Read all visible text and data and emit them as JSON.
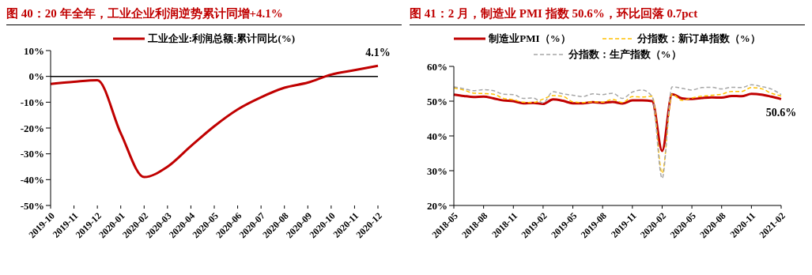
{
  "chart_data": [
    {
      "type": "line",
      "title": "图 40：20 年全年，工业企业利润逆势累计同增+4.1%",
      "categories": [
        "2019-10",
        "2019-11",
        "2019-12",
        "2020-01",
        "2020-02",
        "2020-03",
        "2020-04",
        "2020-05",
        "2020-06",
        "2020-07",
        "2020-08",
        "2020-09",
        "2020-10",
        "2020-11",
        "2020-12"
      ],
      "series": [
        {
          "name": "工业企业:利润总额:累计同比(%)",
          "color": "#c00000",
          "line_style": "solid",
          "values": [
            -2.9,
            -2.1,
            -1.5,
            -22,
            -39,
            -35,
            -27,
            -19.3,
            -12.8,
            -8.1,
            -4.4,
            -2.4,
            0.7,
            2.4,
            4.1
          ]
        }
      ],
      "ylim": [
        -50,
        10
      ],
      "yticks": [
        {
          "value": -50,
          "label": "-50%"
        },
        {
          "value": -40,
          "label": "-40%"
        },
        {
          "value": -30,
          "label": "-30%"
        },
        {
          "value": -20,
          "label": "-20%"
        },
        {
          "value": -10,
          "label": "-10%"
        },
        {
          "value": 0,
          "label": "0%"
        },
        {
          "value": 10,
          "label": "10%"
        }
      ],
      "ref_lines": [
        {
          "axis": "y",
          "value": 0,
          "label": null,
          "color": "#000000"
        }
      ],
      "annotations": [
        {
          "text": "4.1%",
          "x": "2020-12",
          "y": 4.1
        }
      ],
      "grid": false,
      "legend": "top",
      "marker": "none"
    },
    {
      "type": "line",
      "title": "图 41：2 月，制造业 PMI 指数 50.6%，环比回落 0.7pct",
      "categories": [
        "2018-05",
        null,
        null,
        "2018-08",
        null,
        null,
        "2018-11",
        null,
        null,
        "2019-02",
        null,
        null,
        "2019-05",
        null,
        null,
        "2019-08",
        null,
        null,
        "2019-11",
        null,
        null,
        "2020-02",
        null,
        null,
        "2020-05",
        null,
        null,
        "2020-08",
        null,
        null,
        "2020-11",
        null,
        null,
        "2021-02"
      ],
      "series": [
        {
          "name": "制造业PMI（%）",
          "color": "#c00000",
          "line_style": "solid",
          "values": [
            51.9,
            51.5,
            51.2,
            51.3,
            50.8,
            50.2,
            50.0,
            49.4,
            49.5,
            49.2,
            50.5,
            50.1,
            49.4,
            49.4,
            49.7,
            49.5,
            49.8,
            49.3,
            50.2,
            50.2,
            50.0,
            35.7,
            52.0,
            50.8,
            50.6,
            50.9,
            51.1,
            51.0,
            51.5,
            51.4,
            52.1,
            51.9,
            51.3,
            50.6
          ]
        },
        {
          "name": "分指数：新订单指数（%）",
          "color": "#ffc000",
          "line_style": "dashed",
          "values": [
            53.8,
            53.2,
            52.3,
            52.2,
            52.0,
            50.8,
            50.4,
            49.7,
            49.6,
            50.6,
            51.6,
            51.4,
            49.8,
            49.6,
            49.8,
            49.7,
            50.5,
            49.6,
            51.3,
            51.2,
            51.4,
            29.3,
            52.0,
            50.2,
            50.9,
            51.4,
            51.7,
            52.0,
            52.8,
            52.8,
            53.9,
            53.6,
            52.3,
            51.5
          ]
        },
        {
          "name": "分指数：生产指数（%）",
          "color": "#a6a6a6",
          "line_style": "dashed",
          "values": [
            54.1,
            53.6,
            53.0,
            53.3,
            53.0,
            52.0,
            51.9,
            50.8,
            50.9,
            49.5,
            52.7,
            52.1,
            51.7,
            51.3,
            52.1,
            51.9,
            52.3,
            50.8,
            52.6,
            53.2,
            51.3,
            27.8,
            54.1,
            53.7,
            53.2,
            53.9,
            54.0,
            53.5,
            54.0,
            53.9,
            54.7,
            54.2,
            53.5,
            51.9
          ]
        }
      ],
      "ylim": [
        20,
        60
      ],
      "yticks": [
        {
          "value": 20,
          "label": "20%"
        },
        {
          "value": 30,
          "label": "30%"
        },
        {
          "value": 40,
          "label": "40%"
        },
        {
          "value": 50,
          "label": "50%"
        },
        {
          "value": 60,
          "label": "60%"
        }
      ],
      "annotations": [
        {
          "text": "50.6%",
          "x": "2021-02",
          "y": 50.6
        }
      ],
      "grid": false,
      "legend": "top",
      "marker": "none"
    }
  ]
}
